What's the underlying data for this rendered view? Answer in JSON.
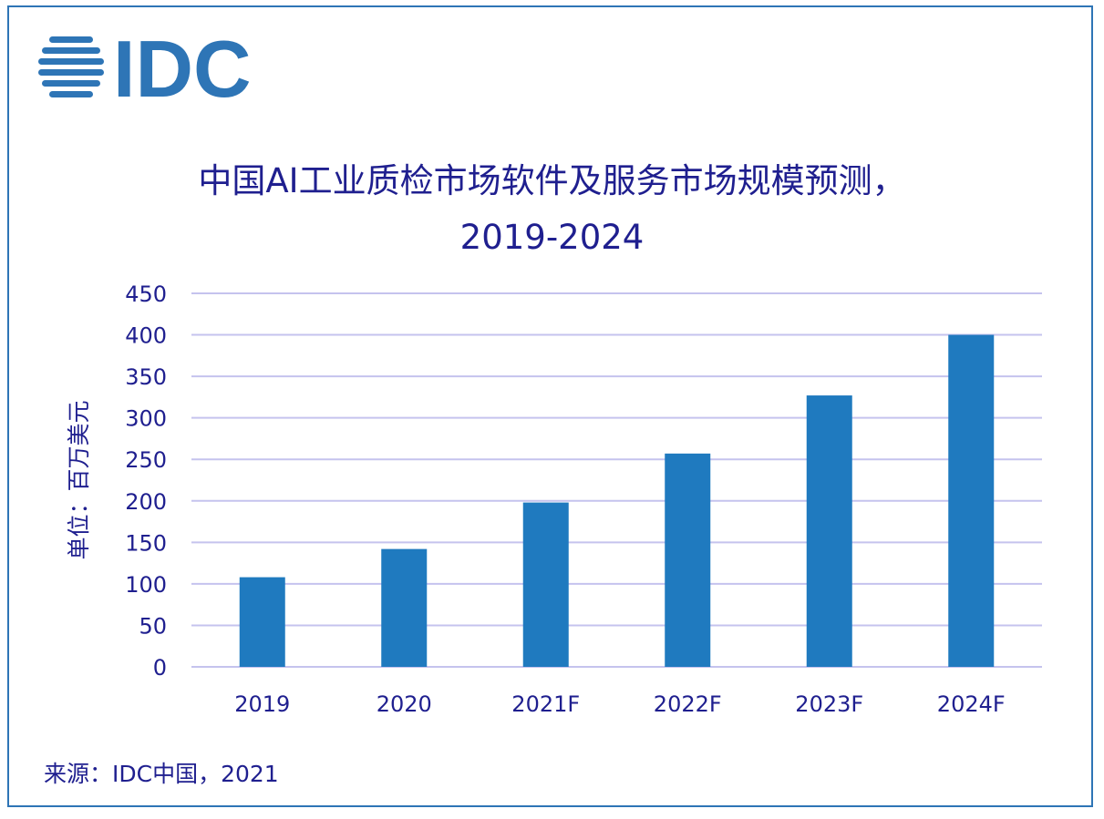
{
  "logo": {
    "text": "IDC",
    "color": "#2e75b6",
    "icon": "globe-stripes-icon"
  },
  "chart_data": {
    "type": "bar",
    "title": "中国AI工业质检市场软件及服务市场规模预测，",
    "subtitle": "2019-2024",
    "ylabel": "单位：百万美元",
    "xlabel": "",
    "categories": [
      "2019",
      "2020",
      "2021F",
      "2022F",
      "2023F",
      "2024F"
    ],
    "values": [
      108,
      142,
      198,
      257,
      327,
      400
    ],
    "ylim": [
      0,
      450
    ],
    "yticks": [
      0,
      50,
      100,
      150,
      200,
      250,
      300,
      350,
      400,
      450
    ],
    "grid": true,
    "legend": "none",
    "bar_color": "#1f7abf",
    "grid_color": "#c5c3ee",
    "text_color": "#1f1f8f"
  },
  "source": "来源：IDC中国，2021"
}
